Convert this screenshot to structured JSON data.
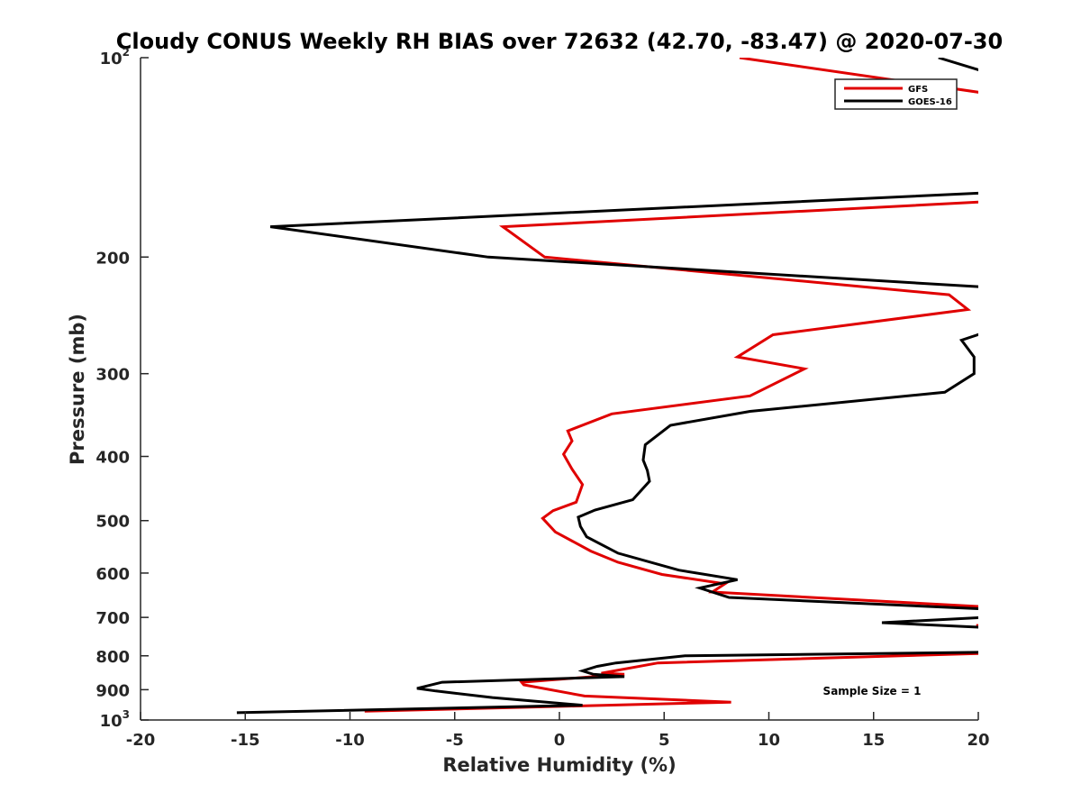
{
  "chart_data": {
    "type": "line",
    "title": "Cloudy CONUS Weekly RH BIAS over 72632 (42.70, -83.47) @ 2020-07-30",
    "xlabel": "Relative Humidity (%)",
    "ylabel": "Pressure (mb)",
    "xlim": [
      -20,
      20
    ],
    "ylim": [
      1000,
      100
    ],
    "yscale": "log",
    "y_reversed": true,
    "grid": false,
    "x_ticks": [
      -20,
      -15,
      -10,
      -5,
      0,
      5,
      10,
      15,
      20
    ],
    "y_ticks": [
      {
        "value": 100,
        "base": "10",
        "exp": "2"
      },
      {
        "value": 200,
        "label": "200"
      },
      {
        "value": 300,
        "label": "300"
      },
      {
        "value": 400,
        "label": "400"
      },
      {
        "value": 500,
        "label": "500"
      },
      {
        "value": 600,
        "label": "600"
      },
      {
        "value": 700,
        "label": "700"
      },
      {
        "value": 800,
        "label": "800"
      },
      {
        "value": 900,
        "label": "900"
      },
      {
        "value": 1000,
        "base": "10",
        "exp": "3"
      }
    ],
    "legend": {
      "position": "top-right",
      "entries": [
        "GFS",
        "GOES-16"
      ]
    },
    "annotations": [
      {
        "text": "Sample Size = 1",
        "position": "bottom-right"
      }
    ],
    "series": [
      {
        "name": "GFS",
        "color": "#e00000",
        "segments": [
          {
            "x": [
              8.6,
              20.2
            ],
            "y": [
              100,
              113
            ]
          },
          {
            "x": [
              20.3,
              -2.7,
              -0.7,
              18.6,
              19.5,
              10.2,
              8.5,
              11.7,
              9.1,
              2.5,
              0.4,
              0.6,
              0.2,
              0.6,
              1.1,
              0.8,
              -0.3,
              -0.8,
              -0.2,
              1.5,
              2.8,
              4.9,
              7.9,
              7.3,
              20.4
            ],
            "y": [
              165,
              180,
              200,
              228,
              240,
              262,
              283,
              295,
              324,
              345,
              366,
              379,
              397,
              418,
              441,
              469,
              483,
              496,
              520,
              556,
              578,
              603,
              623,
              641,
              675
            ]
          },
          {
            "x": [
              19.9,
              20.3
            ],
            "y": [
              720,
              720
            ]
          },
          {
            "x": [
              20.3,
              4.7,
              2.0,
              3.1,
              -1.8,
              -1.7,
              1.2,
              8.2,
              -9.3
            ],
            "y": [
              793,
              820,
              850,
              853,
              877,
              885,
              920,
              940,
              970
            ]
          }
        ]
      },
      {
        "name": "GOES-16",
        "color": "#000000",
        "segments": [
          {
            "x": [
              18.1,
              20.3
            ],
            "y": [
              100,
              105
            ]
          },
          {
            "x": [
              20.3,
              -13.8,
              -3.4,
              20.3
            ],
            "y": [
              160,
              180,
              200,
              222
            ]
          },
          {
            "x": [
              20.3,
              19.2,
              19.8,
              19.8,
              18.4,
              9.1,
              5.3,
              4.1,
              4.0,
              4.2,
              4.3,
              3.5,
              1.7,
              0.9,
              1.0,
              1.3,
              2.8,
              5.7,
              8.5,
              6.7,
              8.1,
              20.4
            ],
            "y": [
              260,
              267,
              283,
              300,
              320,
              342,
              359,
              384,
              405,
              420,
              436,
              465,
              482,
              494,
              510,
              529,
              560,
              594,
              614,
              632,
              653,
              680
            ]
          },
          {
            "x": [
              20.3,
              15.4,
              20.3
            ],
            "y": [
              700,
              713,
              725
            ]
          },
          {
            "x": [
              20.3,
              6.0,
              2.7,
              1.8,
              1.1,
              1.6,
              3.1,
              -5.6,
              -6.8,
              -5.9,
              -3.2,
              1.1,
              -15.4
            ],
            "y": [
              790,
              800,
              820,
              830,
              843,
              853,
              860,
              877,
              896,
              904,
              925,
              950,
              975
            ]
          }
        ]
      }
    ]
  }
}
